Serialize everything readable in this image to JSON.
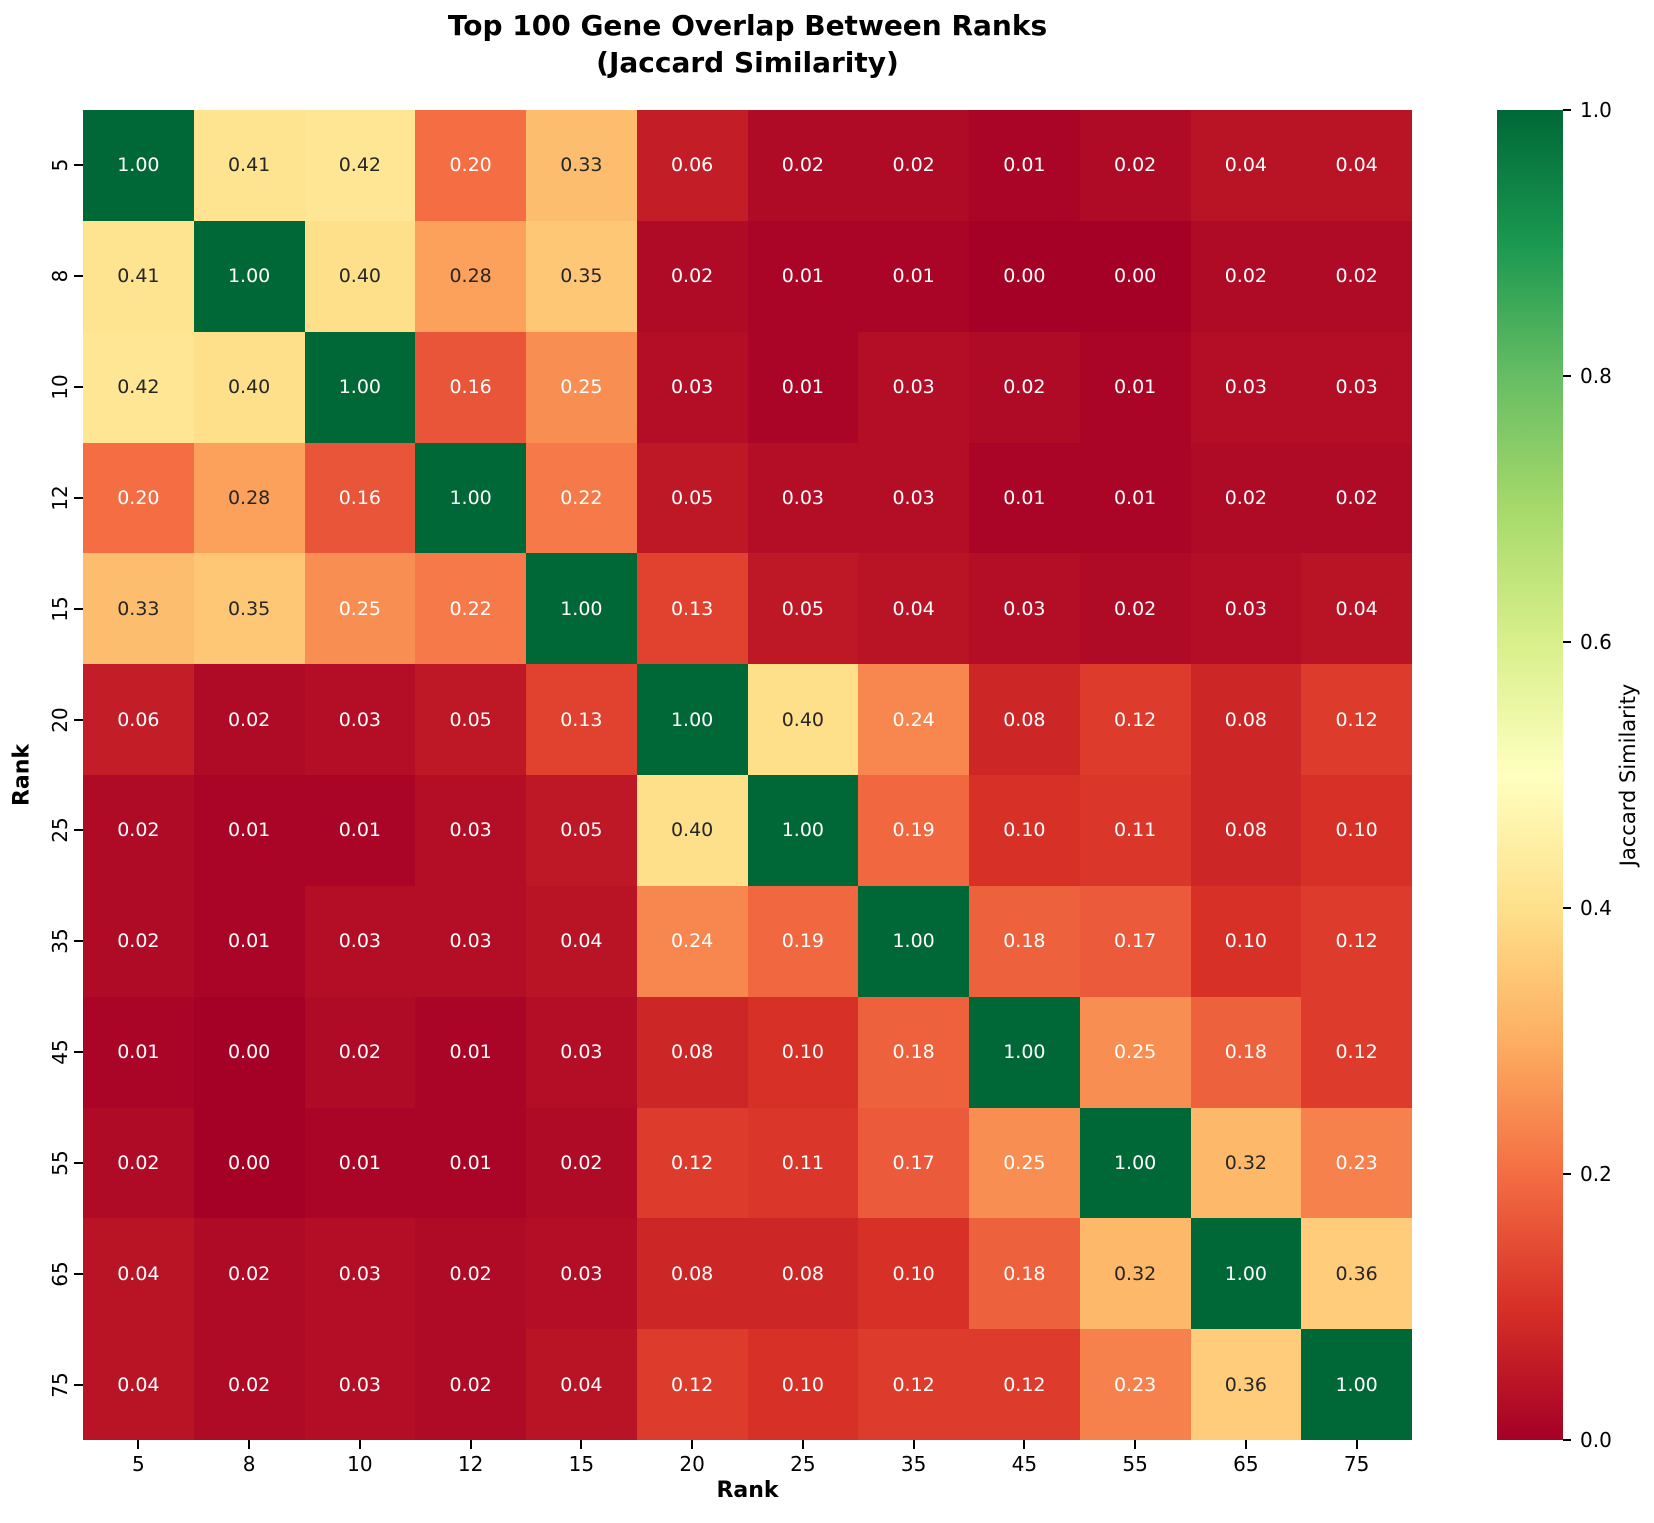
{
  "title": {
    "line1": "Top 100 Gene Overlap Between Ranks",
    "line2": "(Jaccard Similarity)"
  },
  "chart_data": {
    "type": "heatmap",
    "title": "Top 100 Gene Overlap Between Ranks (Jaccard Similarity)",
    "xlabel": "Rank",
    "ylabel": "Rank",
    "categories": [
      "5",
      "8",
      "10",
      "12",
      "15",
      "20",
      "25",
      "35",
      "45",
      "55",
      "65",
      "75"
    ],
    "matrix": [
      [
        1.0,
        0.41,
        0.42,
        0.2,
        0.33,
        0.06,
        0.02,
        0.02,
        0.01,
        0.02,
        0.04,
        0.04
      ],
      [
        0.41,
        1.0,
        0.4,
        0.28,
        0.35,
        0.02,
        0.01,
        0.01,
        0.0,
        0.0,
        0.02,
        0.02
      ],
      [
        0.42,
        0.4,
        1.0,
        0.16,
        0.25,
        0.03,
        0.01,
        0.03,
        0.02,
        0.01,
        0.03,
        0.03
      ],
      [
        0.2,
        0.28,
        0.16,
        1.0,
        0.22,
        0.05,
        0.03,
        0.03,
        0.01,
        0.01,
        0.02,
        0.02
      ],
      [
        0.33,
        0.35,
        0.25,
        0.22,
        1.0,
        0.13,
        0.05,
        0.04,
        0.03,
        0.02,
        0.03,
        0.04
      ],
      [
        0.06,
        0.02,
        0.03,
        0.05,
        0.13,
        1.0,
        0.4,
        0.24,
        0.08,
        0.12,
        0.08,
        0.12
      ],
      [
        0.02,
        0.01,
        0.01,
        0.03,
        0.05,
        0.4,
        1.0,
        0.19,
        0.1,
        0.11,
        0.08,
        0.1
      ],
      [
        0.02,
        0.01,
        0.03,
        0.03,
        0.04,
        0.24,
        0.19,
        1.0,
        0.18,
        0.17,
        0.1,
        0.12
      ],
      [
        0.01,
        0.0,
        0.02,
        0.01,
        0.03,
        0.08,
        0.1,
        0.18,
        1.0,
        0.25,
        0.18,
        0.12
      ],
      [
        0.02,
        0.0,
        0.01,
        0.01,
        0.02,
        0.12,
        0.11,
        0.17,
        0.25,
        1.0,
        0.32,
        0.23
      ],
      [
        0.04,
        0.02,
        0.03,
        0.02,
        0.03,
        0.08,
        0.08,
        0.1,
        0.18,
        0.32,
        1.0,
        0.36
      ],
      [
        0.04,
        0.02,
        0.03,
        0.02,
        0.04,
        0.12,
        0.1,
        0.12,
        0.12,
        0.23,
        0.36,
        1.0
      ]
    ],
    "value_decimals": 2,
    "grid": false,
    "colormap": {
      "name": "RdYlGn",
      "stops": [
        "#a50026",
        "#d73027",
        "#f46d43",
        "#fdae61",
        "#fee08b",
        "#ffffbf",
        "#d9ef8b",
        "#a6d96a",
        "#66bd63",
        "#1a9850",
        "#006837"
      ]
    },
    "annotation_colors": {
      "light_text": "#ffffff",
      "dark_text": "#262626"
    },
    "colorbar": {
      "label": "Jaccard Similarity",
      "ticks": [
        "1.0",
        "0.8",
        "0.6",
        "0.4",
        "0.2",
        "0.0"
      ],
      "range": [
        0.0,
        1.0
      ],
      "position": "right"
    }
  }
}
